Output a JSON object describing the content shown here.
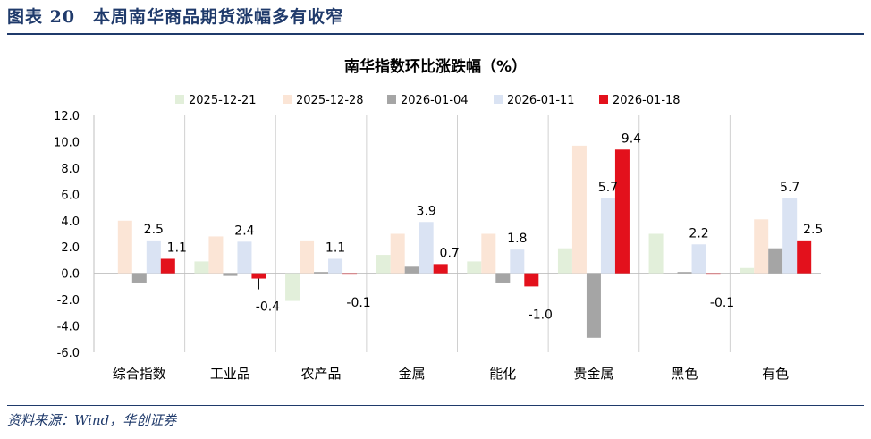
{
  "figure_title": "图表 20　本周南华商品期货涨幅多有收窄",
  "source": "资料来源：Wind，华创证券",
  "chart_data": {
    "type": "bar",
    "title": "南华指数环比涨跌幅（%）",
    "xlabel": "",
    "ylabel": "",
    "ylim": [
      -6.0,
      12.0
    ],
    "ytick_step": 2.0,
    "yticks": [
      "12.0",
      "10.0",
      "8.0",
      "6.0",
      "4.0",
      "2.0",
      "0.0",
      "-2.0",
      "-4.0",
      "-6.0"
    ],
    "grid": "vertical separators",
    "legend_position": "top",
    "categories": [
      "综合指数",
      "工业品",
      "农产品",
      "金属",
      "能化",
      "贵金属",
      "黑色",
      "有色"
    ],
    "series": [
      {
        "name": "2025-12-21",
        "color": "#e2efda",
        "values": [
          0.0,
          0.9,
          -2.1,
          1.4,
          0.9,
          1.9,
          3.0,
          0.4
        ]
      },
      {
        "name": "2025-12-28",
        "color": "#fbe5d6",
        "values": [
          4.0,
          2.8,
          2.5,
          3.0,
          3.0,
          9.7,
          0.0,
          4.1
        ]
      },
      {
        "name": "2026-01-04",
        "color": "#a5a5a5",
        "values": [
          -0.7,
          -0.2,
          0.1,
          0.5,
          -0.7,
          -4.9,
          0.1,
          1.9
        ]
      },
      {
        "name": "2026-01-11",
        "color": "#dae3f3",
        "values": [
          2.5,
          2.4,
          1.1,
          3.9,
          1.8,
          5.7,
          2.2,
          5.7
        ]
      },
      {
        "name": "2026-01-18",
        "color": "#e3111c",
        "values": [
          1.1,
          -0.4,
          -0.1,
          0.7,
          -1.0,
          9.4,
          -0.1,
          2.5
        ]
      }
    ],
    "data_labels": [
      {
        "series": 3,
        "category": 0,
        "text": "2.5"
      },
      {
        "series": 4,
        "category": 0,
        "text": "1.1"
      },
      {
        "series": 3,
        "category": 1,
        "text": "2.4"
      },
      {
        "series": 4,
        "category": 1,
        "text": "-0.4"
      },
      {
        "series": 3,
        "category": 2,
        "text": "1.1"
      },
      {
        "series": 4,
        "category": 2,
        "text": "-0.1"
      },
      {
        "series": 3,
        "category": 3,
        "text": "3.9"
      },
      {
        "series": 4,
        "category": 3,
        "text": "0.7"
      },
      {
        "series": 3,
        "category": 4,
        "text": "1.8"
      },
      {
        "series": 4,
        "category": 4,
        "text": "-1.0"
      },
      {
        "series": 3,
        "category": 5,
        "text": "5.7"
      },
      {
        "series": 4,
        "category": 5,
        "text": "9.4"
      },
      {
        "series": 3,
        "category": 6,
        "text": "2.2"
      },
      {
        "series": 4,
        "category": 6,
        "text": "-0.1"
      },
      {
        "series": 3,
        "category": 7,
        "text": "5.7"
      },
      {
        "series": 4,
        "category": 7,
        "text": "2.5"
      }
    ]
  }
}
